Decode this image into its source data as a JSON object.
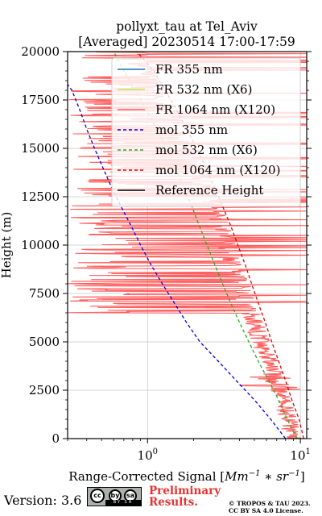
{
  "chart_data": {
    "type": "line",
    "title": "pollyxt_tau at Tel_Aviv",
    "subtitle": "[Averaged] 20230514 17:00-17:59",
    "xlabel": "Range-Corrected Signal [Mm^-1 * sr^-1]",
    "ylabel": "Height (m)",
    "xscale": "log",
    "xlim": [
      0.3,
      11
    ],
    "ylim": [
      0,
      20000
    ],
    "x_ticks": [
      1,
      10
    ],
    "y_ticks": [
      0,
      2500,
      5000,
      7500,
      10000,
      12500,
      15000,
      17500,
      20000
    ],
    "y_tick_labels": [
      "0",
      "2500",
      "5000",
      "7500",
      "10000",
      "12500",
      "15000",
      "17500",
      "20000"
    ],
    "grid": true,
    "legend_position": "top-right",
    "series": [
      {
        "name": "FR 355 nm",
        "color": "#1f77b4",
        "style": "solid",
        "points": []
      },
      {
        "name": "FR 532 nm (X6)",
        "color": "#bfe84a",
        "style": "solid",
        "points": []
      },
      {
        "name": "FR 1064 nm (X120)",
        "color": "#ff6060",
        "style": "solid",
        "profile_heights": [
          0,
          1000,
          2000,
          3000,
          4000,
          5000,
          6000,
          7000,
          8000,
          9000,
          10000,
          11000,
          12000,
          13000,
          14000,
          15000,
          16000,
          17000,
          18000,
          19000,
          20000
        ],
        "profile_values": [
          9.0,
          8.4,
          7.7,
          6.9,
          6.2,
          5.6,
          5.0,
          4.5,
          4.1,
          3.7,
          3.35,
          3.0,
          2.7,
          2.4,
          2.1,
          1.85,
          1.6,
          1.4,
          1.2,
          1.0,
          0.85
        ],
        "scattered_spikes": true
      },
      {
        "name": "mol 355 nm",
        "color": "#0000dd",
        "style": "dashed",
        "points": [
          [
            8.0,
            0
          ],
          [
            6.4,
            1000
          ],
          [
            5.0,
            2000
          ],
          [
            3.8,
            3000
          ],
          [
            2.9,
            4000
          ],
          [
            2.2,
            5000
          ],
          [
            1.8,
            6000
          ],
          [
            1.5,
            7000
          ],
          [
            1.25,
            8000
          ],
          [
            1.05,
            9000
          ],
          [
            0.9,
            10000
          ],
          [
            0.78,
            11000
          ],
          [
            0.67,
            12000
          ],
          [
            0.58,
            13000
          ],
          [
            0.51,
            14000
          ],
          [
            0.45,
            15000
          ],
          [
            0.4,
            16000
          ],
          [
            0.36,
            17000
          ],
          [
            0.32,
            18000
          ],
          [
            0.3,
            18300
          ]
        ]
      },
      {
        "name": "mol 532 nm (X6)",
        "color": "#22aa22",
        "style": "dashed",
        "points": [
          [
            9.5,
            0
          ],
          [
            8.2,
            1000
          ],
          [
            7.2,
            2000
          ],
          [
            6.2,
            3000
          ],
          [
            5.3,
            4000
          ],
          [
            4.6,
            5000
          ],
          [
            4.0,
            6000
          ],
          [
            3.5,
            7000
          ],
          [
            3.1,
            8000
          ],
          [
            2.75,
            9000
          ],
          [
            2.45,
            10000
          ],
          [
            2.18,
            11000
          ],
          [
            1.95,
            12000
          ],
          [
            1.72,
            13000
          ],
          [
            1.52,
            14000
          ],
          [
            1.33,
            15000
          ],
          [
            1.15,
            16000
          ],
          [
            0.98,
            17000
          ],
          [
            0.83,
            18000
          ],
          [
            0.7,
            19000
          ],
          [
            0.6,
            20000
          ]
        ]
      },
      {
        "name": "mol 1064 nm (X120)",
        "color": "#dd0000",
        "style": "dashed",
        "points": [
          [
            10.5,
            0
          ],
          [
            9.8,
            1000
          ],
          [
            8.8,
            2000
          ],
          [
            8.0,
            3000
          ],
          [
            7.2,
            4000
          ],
          [
            6.5,
            5000
          ],
          [
            5.9,
            6000
          ],
          [
            5.3,
            7000
          ],
          [
            4.8,
            8000
          ],
          [
            4.35,
            9000
          ],
          [
            3.9,
            10000
          ],
          [
            3.5,
            11000
          ],
          [
            3.1,
            12000
          ],
          [
            2.75,
            13000
          ],
          [
            2.4,
            14000
          ],
          [
            2.1,
            15000
          ],
          [
            1.8,
            16000
          ],
          [
            1.55,
            17000
          ],
          [
            1.3,
            18000
          ],
          [
            1.1,
            19000
          ],
          [
            0.85,
            20000
          ]
        ]
      },
      {
        "name": "Reference Height",
        "color": "#000000",
        "style": "solid",
        "points": []
      }
    ]
  },
  "footer": {
    "version": "Version: 3.6",
    "license_badge": {
      "symbols": [
        "cc",
        "by",
        "sa"
      ],
      "strip_text": "BY SA"
    },
    "preliminary_line1": "Preliminary",
    "preliminary_line2": "Results.",
    "copyright_line1": "© TROPOS & TAU 2023.",
    "copyright_line2": "CC BY SA 4.0 License.",
    "preliminary_color": "#e8322f"
  }
}
